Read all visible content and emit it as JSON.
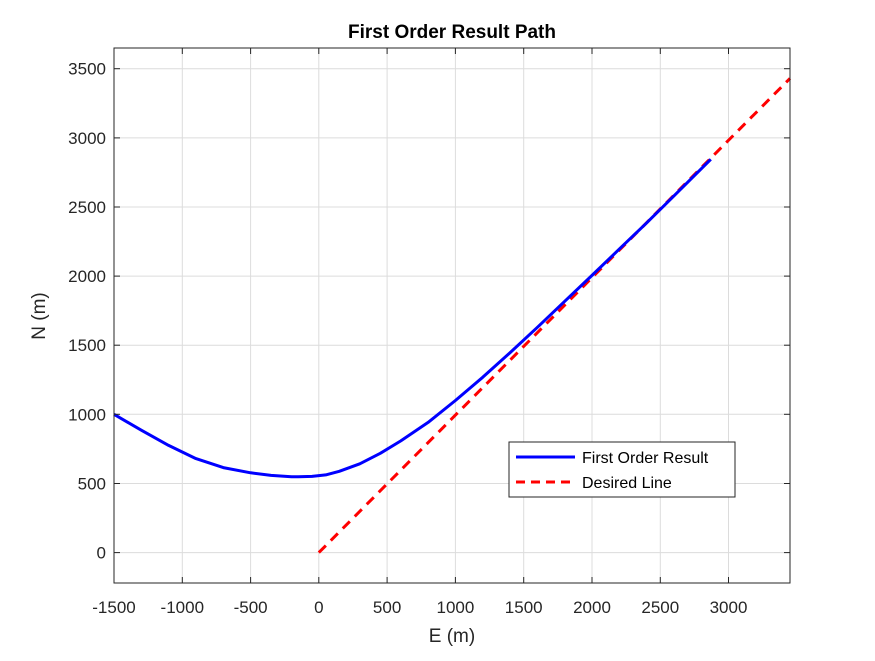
{
  "chart_data": {
    "type": "line",
    "title": "First Order Result Path",
    "xlabel": "E (m)",
    "ylabel": "N (m)",
    "xlim": [
      -1500,
      3450
    ],
    "ylim": [
      -220,
      3650
    ],
    "xticks": [
      -1500,
      -1000,
      -500,
      0,
      500,
      1000,
      1500,
      2000,
      2500,
      3000
    ],
    "yticks": [
      0,
      500,
      1000,
      1500,
      2000,
      2500,
      3000,
      3500
    ],
    "xtick_labels": [
      "-1500",
      "-1000",
      "-500",
      "0",
      "500",
      "1000",
      "1500",
      "2000",
      "2500",
      "3000"
    ],
    "ytick_labels": [
      "0",
      "500",
      "1000",
      "1500",
      "2000",
      "2500",
      "3000",
      "3500"
    ],
    "grid": true,
    "legend_position": "lower-right",
    "series": [
      {
        "name": "First Order Result",
        "color": "#0000ff",
        "style": "solid",
        "x": [
          -1500,
          -1300,
          -1100,
          -900,
          -700,
          -500,
          -350,
          -200,
          -150,
          -50,
          50,
          150,
          300,
          450,
          600,
          800,
          1000,
          1200,
          1400,
          1600,
          1800,
          2000,
          2200,
          2400,
          2600,
          2870
        ],
        "y": [
          1000,
          885,
          775,
          680,
          615,
          577,
          558,
          549,
          548,
          551,
          562,
          588,
          642,
          718,
          808,
          942,
          1100,
          1268,
          1446,
          1630,
          1818,
          2005,
          2195,
          2385,
          2580,
          2845
        ]
      },
      {
        "name": "Desired Line",
        "color": "#ff0000",
        "style": "dashed",
        "x": [
          0,
          3450
        ],
        "y": [
          0,
          3430
        ]
      }
    ]
  }
}
